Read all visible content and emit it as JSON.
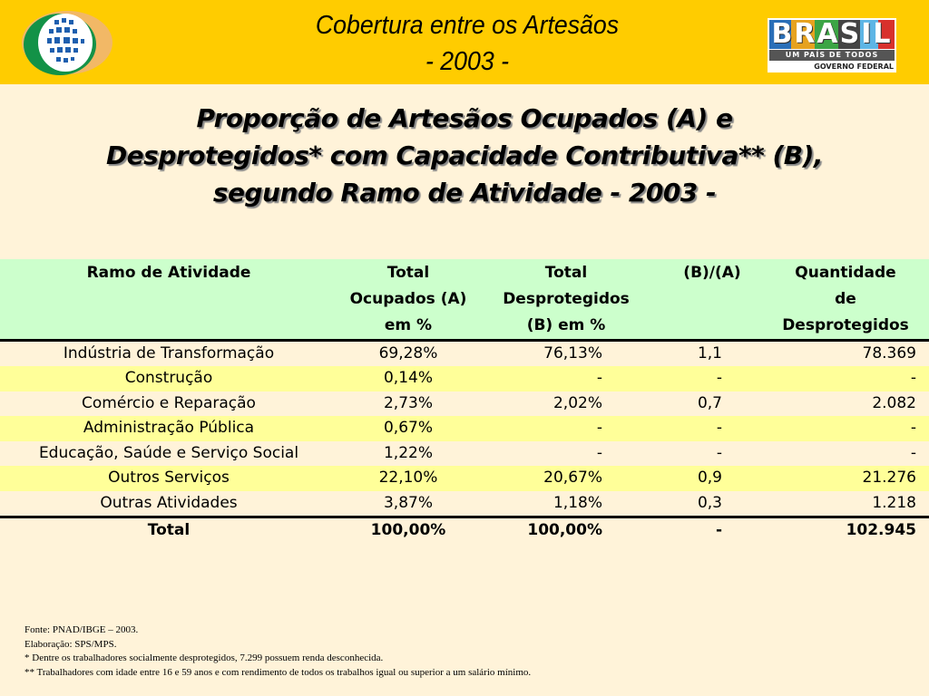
{
  "header": {
    "title_line1": "Cobertura entre os Artesãos",
    "title_line2": "- 2003 -",
    "right_logo_text": "BRASIL",
    "right_logo_subtitle": "UM PAÍS DE TODOS",
    "right_logo_caption": "GOVERNO FEDERAL"
  },
  "title": {
    "line1": "Proporção de Artesãos Ocupados (A) e",
    "line2": "Desprotegidos* com Capacidade Contributiva** (B),",
    "line3": "segundo Ramo de Atividade - 2003 -"
  },
  "table": {
    "headers": [
      [
        "Ramo de Atividade"
      ],
      [
        "Total",
        "Ocupados (A)",
        "em %"
      ],
      [
        "Total",
        "Desprotegidos",
        "(B) em %"
      ],
      [
        "(B)/(A)"
      ],
      [
        "Quantidade",
        "de",
        "Desprotegidos"
      ]
    ],
    "rows": [
      [
        "Indústria de Transformação",
        "69,28%",
        "76,13%",
        "1,1",
        "78.369"
      ],
      [
        "Construção",
        "0,14%",
        "-",
        "-",
        "-"
      ],
      [
        "Comércio e Reparação",
        "2,73%",
        "2,02%",
        "0,7",
        "2.082"
      ],
      [
        "Administração Pública",
        "0,67%",
        "-",
        "-",
        "-"
      ],
      [
        "Educação, Saúde e Serviço Social",
        "1,22%",
        "-",
        "-",
        "-"
      ],
      [
        "Outros Serviços",
        "22,10%",
        "20,67%",
        "0,9",
        "21.276"
      ],
      [
        "Outras Atividades",
        "3,87%",
        "1,18%",
        "0,3",
        "1.218"
      ]
    ],
    "total": [
      "Total",
      "100,00%",
      "100,00%",
      "-",
      "102.945"
    ]
  },
  "footnotes": [
    "Fonte: PNAD/IBGE – 2003.",
    "Elaboração: SPS/MPS.",
    "* Dentre os trabalhadores socialmente desprotegidos, 7.299 possuem renda desconhecida.",
    "** Trabalhadores com idade entre 16 e 59 anos e com rendimento de todos os trabalhos igual ou superior a um salário mínimo."
  ],
  "colors": {
    "header": "#FFCC00",
    "background": "#FFF3D9",
    "table_header": "#CCFFCC",
    "row_alt": "#FFFF99"
  }
}
